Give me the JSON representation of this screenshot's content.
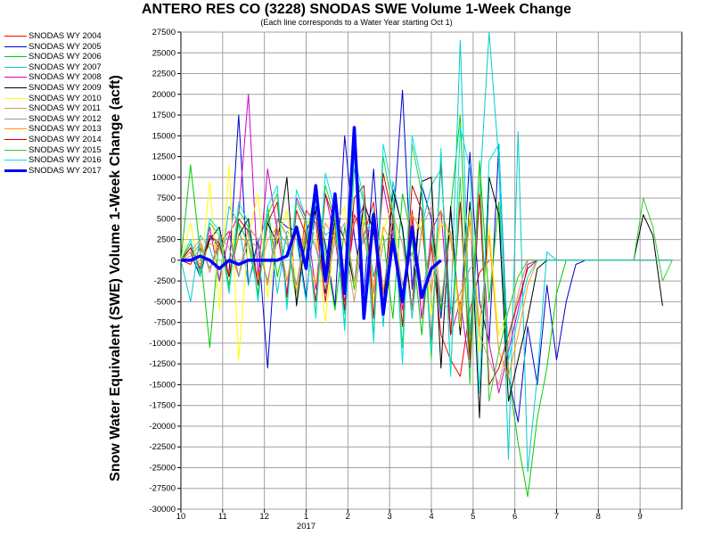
{
  "chart_data": {
    "type": "line",
    "title": "ANTERO RES CO (3228) SNODAS SWE Volume 1-Week Change",
    "subtitle": "(Each line corresponds to a Water Year starting Oct 1)",
    "ylabel": "Snow Water Equivalent (SWE) Volume 1-Week Change (acft)",
    "xlabel": "",
    "year_label": "2017",
    "ylim": [
      -30000,
      27500
    ],
    "yticks": [
      27500,
      25000,
      22500,
      20000,
      17500,
      15000,
      12500,
      10000,
      7500,
      5000,
      2500,
      0,
      -2500,
      -5000,
      -7500,
      -10000,
      -12500,
      -15000,
      -17500,
      -20000,
      -22500,
      -25000,
      -27500,
      -30000
    ],
    "xticks": [
      "10",
      "11",
      "12",
      "1",
      "2",
      "3",
      "4",
      "5",
      "6",
      "7",
      "8",
      "9"
    ],
    "grid": true,
    "legend_position": "left",
    "series": [
      {
        "name": "SNODAS WY 2004",
        "color": "#ff0000",
        "values": [
          0,
          -500,
          1500,
          -1000,
          2000,
          3500,
          -2000,
          4000,
          2500,
          -3000,
          5000,
          3000,
          -4000,
          6000,
          4500,
          -5000,
          3500,
          -6000,
          5500,
          3000,
          7000,
          -4000,
          4500,
          -5000,
          6000,
          -7000,
          2000,
          -9000,
          -12000,
          -14000,
          -6000,
          -1500,
          0,
          0,
          0,
          0,
          0,
          0,
          0,
          0,
          0,
          0,
          0,
          0,
          0,
          0,
          0,
          0,
          0,
          0,
          0,
          0
        ]
      },
      {
        "name": "SNODAS WY 2005",
        "color": "#0000cc",
        "values": [
          0,
          1000,
          -2000,
          3000,
          1500,
          -1500,
          17500,
          -3000,
          2500,
          -13000,
          5000,
          4000,
          3500,
          -4500,
          6500,
          2000,
          -5500,
          15000,
          3000,
          -4000,
          11000,
          -6000,
          4000,
          20500,
          -3500,
          9000,
          5000,
          -7000,
          6000,
          -8000,
          13000,
          -5000,
          -10000,
          14000,
          -14000,
          -19500,
          -8000,
          -15000,
          -3000,
          -12000,
          -5000,
          -500,
          0,
          0,
          0,
          0,
          0,
          0,
          0,
          0,
          0,
          0
        ]
      },
      {
        "name": "SNODAS WY 2006",
        "color": "#00cc00",
        "values": [
          0,
          11500,
          1000,
          -10500,
          3000,
          -3000,
          4500,
          2000,
          -4000,
          6500,
          -2000,
          3000,
          -5000,
          2500,
          9000,
          1000,
          -6000,
          4000,
          -3500,
          5500,
          -2000,
          3000,
          -7000,
          8000,
          2500,
          -9000,
          4000,
          -6000,
          6000,
          17500,
          -11000,
          12000,
          -5000,
          7000,
          -14000,
          -22000,
          -28500,
          -19000,
          -13000,
          -4000,
          0,
          0,
          0,
          0,
          0,
          0,
          0,
          0,
          0,
          0,
          0,
          0
        ]
      },
      {
        "name": "SNODAS WY 2007",
        "color": "#00cccc",
        "values": [
          0,
          -5000,
          3000,
          1500,
          -2500,
          6500,
          4500,
          -3000,
          2000,
          5500,
          -4000,
          3500,
          2500,
          -5000,
          7500,
          3000,
          4000,
          -6500,
          14000,
          2000,
          6000,
          -8000,
          9500,
          3500,
          -7000,
          4000,
          9000,
          11000,
          -6500,
          26500,
          -9000,
          8000,
          27500,
          12000,
          -24000,
          15500,
          -25500,
          -14000,
          1000,
          0,
          0,
          0,
          0,
          0,
          0,
          0,
          0,
          0,
          0,
          0,
          0,
          0
        ]
      },
      {
        "name": "SNODAS WY 2008",
        "color": "#cc00cc",
        "values": [
          0,
          2000,
          -1500,
          4000,
          -2500,
          3000,
          5500,
          20000,
          -2000,
          11000,
          3500,
          -4000,
          7500,
          5000,
          -3500,
          8000,
          2500,
          -5000,
          4500,
          6500,
          -4000,
          9000,
          3000,
          -6000,
          5000,
          -7000,
          3500,
          6000,
          -9000,
          -5000,
          -13000,
          8000,
          -10000,
          -16000,
          -11000,
          -6000,
          -500,
          0,
          0,
          0,
          0,
          0,
          0,
          0,
          0,
          0,
          0,
          0,
          0,
          0,
          0,
          0
        ]
      },
      {
        "name": "SNODAS WY 2009",
        "color": "#000000",
        "values": [
          0,
          1500,
          -1000,
          2500,
          4000,
          -2000,
          3000,
          5000,
          -3000,
          4500,
          2000,
          10000,
          -5500,
          3500,
          6000,
          -4000,
          5000,
          2500,
          -3000,
          7000,
          3500,
          -5500,
          8500,
          4000,
          -6000,
          9500,
          10000,
          -13000,
          6500,
          -9000,
          7000,
          -19000,
          10000,
          5500,
          -17000,
          -12000,
          -7000,
          -1000,
          0,
          0,
          0,
          0,
          0,
          0,
          0,
          0,
          0,
          0,
          5500,
          3000,
          -5500
        ]
      },
      {
        "name": "SNODAS WY 2010",
        "color": "#ffff00",
        "values": [
          0,
          4500,
          -2000,
          9500,
          -6000,
          11500,
          -12000,
          3000,
          8000,
          -4500,
          2500,
          6000,
          -3500,
          5000,
          3000,
          -7500,
          4000,
          6500,
          -3000,
          5500,
          -5000,
          3500,
          7000,
          -4000,
          2500,
          5000,
          -6500,
          4500,
          3000,
          -8000,
          6000,
          -11000,
          4000,
          -9000,
          -6000,
          -2000,
          0,
          0,
          0,
          0,
          0,
          0,
          0,
          0,
          0,
          0,
          0,
          0,
          0,
          0,
          0,
          0
        ]
      },
      {
        "name": "SNODAS WY 2011",
        "color": "#cc9966",
        "values": [
          0,
          1000,
          2500,
          -1500,
          3000,
          1500,
          -2000,
          4000,
          2500,
          -3000,
          5000,
          3000,
          -4000,
          3500,
          2000,
          -3500,
          6000,
          2500,
          -5000,
          4500,
          3000,
          -4000,
          5500,
          2000,
          -6000,
          4000,
          6500,
          -5000,
          3500,
          -7000,
          5000,
          -9000,
          -12000,
          -15000,
          -10000,
          -4000,
          0,
          0,
          0,
          0,
          0,
          0,
          0,
          0,
          0,
          0,
          0,
          0,
          0,
          0,
          0,
          0
        ]
      },
      {
        "name": "SNODAS WY 2012",
        "color": "#999999",
        "values": [
          0,
          500,
          2000,
          -1000,
          1500,
          3000,
          -2000,
          2500,
          1500,
          -2500,
          3500,
          2000,
          -3000,
          4000,
          1500,
          -3500,
          2500,
          4500,
          -2500,
          3000,
          -4000,
          2000,
          3500,
          -3000,
          1000,
          -4500,
          2500,
          -5000,
          -6000,
          -4000,
          -1000,
          0,
          0,
          0,
          0,
          0,
          0,
          0,
          0,
          0,
          0,
          0,
          0,
          0,
          0,
          0,
          0,
          0,
          0,
          0,
          0,
          0
        ]
      },
      {
        "name": "SNODAS WY 2013",
        "color": "#ff9900",
        "values": [
          0,
          1000,
          -500,
          2000,
          1500,
          -1500,
          3000,
          2000,
          -2000,
          2500,
          4000,
          -2500,
          3500,
          1500,
          -3000,
          4500,
          2500,
          -2000,
          5000,
          3000,
          -3500,
          4000,
          2000,
          -4500,
          5500,
          3500,
          -4000,
          6000,
          2500,
          -6000,
          5000,
          -8000,
          3000,
          -11000,
          -14000,
          -9000,
          -3000,
          0,
          0,
          0,
          0,
          0,
          0,
          0,
          0,
          0,
          0,
          0,
          0,
          0,
          0,
          0
        ]
      },
      {
        "name": "SNODAS WY 2014",
        "color": "#cc0000",
        "values": [
          0,
          1500,
          -1000,
          3000,
          2000,
          -2000,
          5000,
          3500,
          -3000,
          4500,
          7000,
          -4500,
          6000,
          3000,
          -5000,
          8000,
          4500,
          -6000,
          7500,
          9000,
          -7000,
          10500,
          5000,
          -8000,
          9000,
          6000,
          -10000,
          12000,
          -9000,
          7000,
          -12000,
          8000,
          -15000,
          -13000,
          -9000,
          -5000,
          -1000,
          0,
          0,
          0,
          0,
          0,
          0,
          0,
          0,
          0,
          0,
          0,
          0,
          0,
          0,
          0
        ]
      },
      {
        "name": "SNODAS WY 2015",
        "color": "#33cc33",
        "values": [
          0,
          2000,
          -1500,
          4500,
          3000,
          -3500,
          6000,
          4000,
          -4500,
          5500,
          8000,
          -5500,
          7000,
          4500,
          -6500,
          9000,
          5000,
          -8000,
          11000,
          7000,
          -9000,
          12500,
          6000,
          -10500,
          14000,
          8000,
          -12000,
          13000,
          -13500,
          10000,
          -15000,
          12000,
          -17000,
          -11000,
          -6000,
          -2000,
          0,
          0,
          0,
          0,
          0,
          0,
          0,
          0,
          0,
          0,
          0,
          0,
          7500,
          4000,
          -2500,
          0
        ]
      },
      {
        "name": "SNODAS WY 2016",
        "color": "#00e0e0",
        "values": [
          0,
          2500,
          -2000,
          5000,
          3500,
          -4000,
          7000,
          4500,
          -5000,
          6500,
          9000,
          -6000,
          8500,
          5000,
          -7000,
          10500,
          6000,
          -8500,
          12500,
          7500,
          -10000,
          14000,
          8000,
          -12500,
          15000,
          9500,
          -11000,
          13500,
          -14000,
          16000,
          11000,
          -16000,
          12000,
          14000,
          -12000,
          -7000,
          -2000,
          0,
          0,
          0,
          0,
          0,
          0,
          0,
          0,
          0,
          0,
          0,
          0,
          0,
          0,
          0
        ]
      },
      {
        "name": "SNODAS WY 2017",
        "color": "#0000ff",
        "bold": true,
        "values": [
          0,
          0,
          500,
          0,
          -1000,
          0,
          -500,
          0,
          0,
          0,
          0,
          500,
          4000,
          -1000,
          9000,
          -2500,
          8000,
          -4000,
          16000,
          -7000,
          5500,
          -6500,
          2500,
          -5000,
          4000,
          -4500,
          -1000,
          0
        ]
      }
    ]
  }
}
